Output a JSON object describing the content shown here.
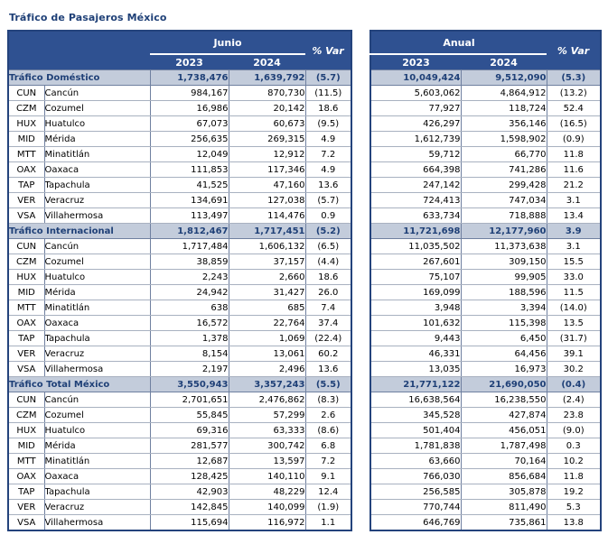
{
  "page": {
    "title": "Tráfico de Pasajeros México"
  },
  "header": {
    "left_period": "Junio",
    "right_period": "Anual",
    "year_2023": "2023",
    "year_2024": "2024",
    "var_label": "% Var"
  },
  "colors": {
    "header_navy": "#2F5191",
    "section_row_bg": "#C3CCDB",
    "section_text_navy": "#1F4077",
    "outer_border": "#24437C",
    "inner_border_vertical": "#6F80A0",
    "inner_border_horizontal": "#A8B1C0"
  },
  "sections": [
    {
      "label": "Tráfico Doméstico",
      "junio": [
        "1,738,476",
        "1,639,792",
        "(5.7)"
      ],
      "anual": [
        "10,049,424",
        "9,512,090",
        "(5.3)"
      ],
      "rows": [
        {
          "code": "CUN",
          "name": "Cancún",
          "junio": [
            "984,167",
            "870,730",
            "(11.5)"
          ],
          "anual": [
            "5,603,062",
            "4,864,912",
            "(13.2)"
          ]
        },
        {
          "code": "CZM",
          "name": "Cozumel",
          "junio": [
            "16,986",
            "20,142",
            "18.6"
          ],
          "anual": [
            "77,927",
            "118,724",
            "52.4"
          ]
        },
        {
          "code": "HUX",
          "name": "Huatulco",
          "junio": [
            "67,073",
            "60,673",
            "(9.5)"
          ],
          "anual": [
            "426,297",
            "356,146",
            "(16.5)"
          ]
        },
        {
          "code": "MID",
          "name": "Mérida",
          "junio": [
            "256,635",
            "269,315",
            "4.9"
          ],
          "anual": [
            "1,612,739",
            "1,598,902",
            "(0.9)"
          ]
        },
        {
          "code": "MTT",
          "name": "Minatitlán",
          "junio": [
            "12,049",
            "12,912",
            "7.2"
          ],
          "anual": [
            "59,712",
            "66,770",
            "11.8"
          ]
        },
        {
          "code": "OAX",
          "name": "Oaxaca",
          "junio": [
            "111,853",
            "117,346",
            "4.9"
          ],
          "anual": [
            "664,398",
            "741,286",
            "11.6"
          ]
        },
        {
          "code": "TAP",
          "name": "Tapachula",
          "junio": [
            "41,525",
            "47,160",
            "13.6"
          ],
          "anual": [
            "247,142",
            "299,428",
            "21.2"
          ]
        },
        {
          "code": "VER",
          "name": "Veracruz",
          "junio": [
            "134,691",
            "127,038",
            "(5.7)"
          ],
          "anual": [
            "724,413",
            "747,034",
            "3.1"
          ]
        },
        {
          "code": "VSA",
          "name": "Villahermosa",
          "junio": [
            "113,497",
            "114,476",
            "0.9"
          ],
          "anual": [
            "633,734",
            "718,888",
            "13.4"
          ]
        }
      ]
    },
    {
      "label": "Tráfico Internacional",
      "junio": [
        "1,812,467",
        "1,717,451",
        "(5.2)"
      ],
      "anual": [
        "11,721,698",
        "12,177,960",
        "3.9"
      ],
      "rows": [
        {
          "code": "CUN",
          "name": "Cancún",
          "junio": [
            "1,717,484",
            "1,606,132",
            "(6.5)"
          ],
          "anual": [
            "11,035,502",
            "11,373,638",
            "3.1"
          ]
        },
        {
          "code": "CZM",
          "name": "Cozumel",
          "junio": [
            "38,859",
            "37,157",
            "(4.4)"
          ],
          "anual": [
            "267,601",
            "309,150",
            "15.5"
          ]
        },
        {
          "code": "HUX",
          "name": "Huatulco",
          "junio": [
            "2,243",
            "2,660",
            "18.6"
          ],
          "anual": [
            "75,107",
            "99,905",
            "33.0"
          ]
        },
        {
          "code": "MID",
          "name": "Mérida",
          "junio": [
            "24,942",
            "31,427",
            "26.0"
          ],
          "anual": [
            "169,099",
            "188,596",
            "11.5"
          ]
        },
        {
          "code": "MTT",
          "name": "Minatitlán",
          "junio": [
            "638",
            "685",
            "7.4"
          ],
          "anual": [
            "3,948",
            "3,394",
            "(14.0)"
          ]
        },
        {
          "code": "OAX",
          "name": "Oaxaca",
          "junio": [
            "16,572",
            "22,764",
            "37.4"
          ],
          "anual": [
            "101,632",
            "115,398",
            "13.5"
          ]
        },
        {
          "code": "TAP",
          "name": "Tapachula",
          "junio": [
            "1,378",
            "1,069",
            "(22.4)"
          ],
          "anual": [
            "9,443",
            "6,450",
            "(31.7)"
          ]
        },
        {
          "code": "VER",
          "name": "Veracruz",
          "junio": [
            "8,154",
            "13,061",
            "60.2"
          ],
          "anual": [
            "46,331",
            "64,456",
            "39.1"
          ]
        },
        {
          "code": "VSA",
          "name": "Villahermosa",
          "junio": [
            "2,197",
            "2,496",
            "13.6"
          ],
          "anual": [
            "13,035",
            "16,973",
            "30.2"
          ]
        }
      ]
    },
    {
      "label": "Tráfico Total México",
      "junio": [
        "3,550,943",
        "3,357,243",
        "(5.5)"
      ],
      "anual": [
        "21,771,122",
        "21,690,050",
        "(0.4)"
      ],
      "rows": [
        {
          "code": "CUN",
          "name": "Cancún",
          "junio": [
            "2,701,651",
            "2,476,862",
            "(8.3)"
          ],
          "anual": [
            "16,638,564",
            "16,238,550",
            "(2.4)"
          ]
        },
        {
          "code": "CZM",
          "name": "Cozumel",
          "junio": [
            "55,845",
            "57,299",
            "2.6"
          ],
          "anual": [
            "345,528",
            "427,874",
            "23.8"
          ]
        },
        {
          "code": "HUX",
          "name": "Huatulco",
          "junio": [
            "69,316",
            "63,333",
            "(8.6)"
          ],
          "anual": [
            "501,404",
            "456,051",
            "(9.0)"
          ]
        },
        {
          "code": "MID",
          "name": "Mérida",
          "junio": [
            "281,577",
            "300,742",
            "6.8"
          ],
          "anual": [
            "1,781,838",
            "1,787,498",
            "0.3"
          ]
        },
        {
          "code": "MTT",
          "name": "Minatitlán",
          "junio": [
            "12,687",
            "13,597",
            "7.2"
          ],
          "anual": [
            "63,660",
            "70,164",
            "10.2"
          ]
        },
        {
          "code": "OAX",
          "name": "Oaxaca",
          "junio": [
            "128,425",
            "140,110",
            "9.1"
          ],
          "anual": [
            "766,030",
            "856,684",
            "11.8"
          ]
        },
        {
          "code": "TAP",
          "name": "Tapachula",
          "junio": [
            "42,903",
            "48,229",
            "12.4"
          ],
          "anual": [
            "256,585",
            "305,878",
            "19.2"
          ]
        },
        {
          "code": "VER",
          "name": "Veracruz",
          "junio": [
            "142,845",
            "140,099",
            "(1.9)"
          ],
          "anual": [
            "770,744",
            "811,490",
            "5.3"
          ]
        },
        {
          "code": "VSA",
          "name": "Villahermosa",
          "junio": [
            "115,694",
            "116,972",
            "1.1"
          ],
          "anual": [
            "646,769",
            "735,861",
            "13.8"
          ]
        }
      ]
    }
  ]
}
